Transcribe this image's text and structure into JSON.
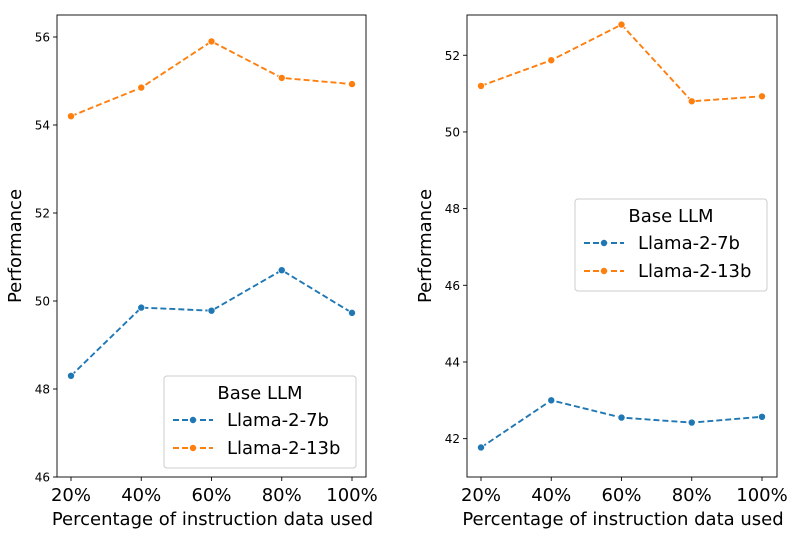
{
  "chart_data": [
    {
      "type": "line",
      "categories": [
        "20%",
        "40%",
        "60%",
        "80%",
        "100%"
      ],
      "xlabel": "Percentage of instruction data used",
      "ylabel": "Performance",
      "ylim": [
        46,
        56.5
      ],
      "yticks": [
        46,
        48,
        50,
        52,
        54,
        56
      ],
      "grid": false,
      "legend": {
        "title": "Base LLM",
        "position": "lower-right"
      },
      "series": [
        {
          "name": "Llama-2-7b",
          "color": "#1f77b4",
          "values": [
            48.3,
            49.85,
            49.78,
            50.7,
            49.73
          ]
        },
        {
          "name": "Llama-2-13b",
          "color": "#ff7f0e",
          "values": [
            54.2,
            54.85,
            55.9,
            55.07,
            54.93
          ]
        }
      ]
    },
    {
      "type": "line",
      "categories": [
        "20%",
        "40%",
        "60%",
        "80%",
        "100%"
      ],
      "xlabel": "Percentage of instruction data used",
      "ylabel": "Performance",
      "ylim": [
        41,
        53.05
      ],
      "yticks": [
        42,
        44,
        46,
        48,
        50,
        52
      ],
      "grid": false,
      "legend": {
        "title": "Base LLM",
        "position": "center-right"
      },
      "series": [
        {
          "name": "Llama-2-7b",
          "color": "#1f77b4",
          "values": [
            41.77,
            43.0,
            42.55,
            42.42,
            42.57
          ]
        },
        {
          "name": "Llama-2-13b",
          "color": "#ff7f0e",
          "values": [
            51.2,
            51.87,
            52.8,
            50.8,
            50.93
          ]
        }
      ]
    }
  ]
}
